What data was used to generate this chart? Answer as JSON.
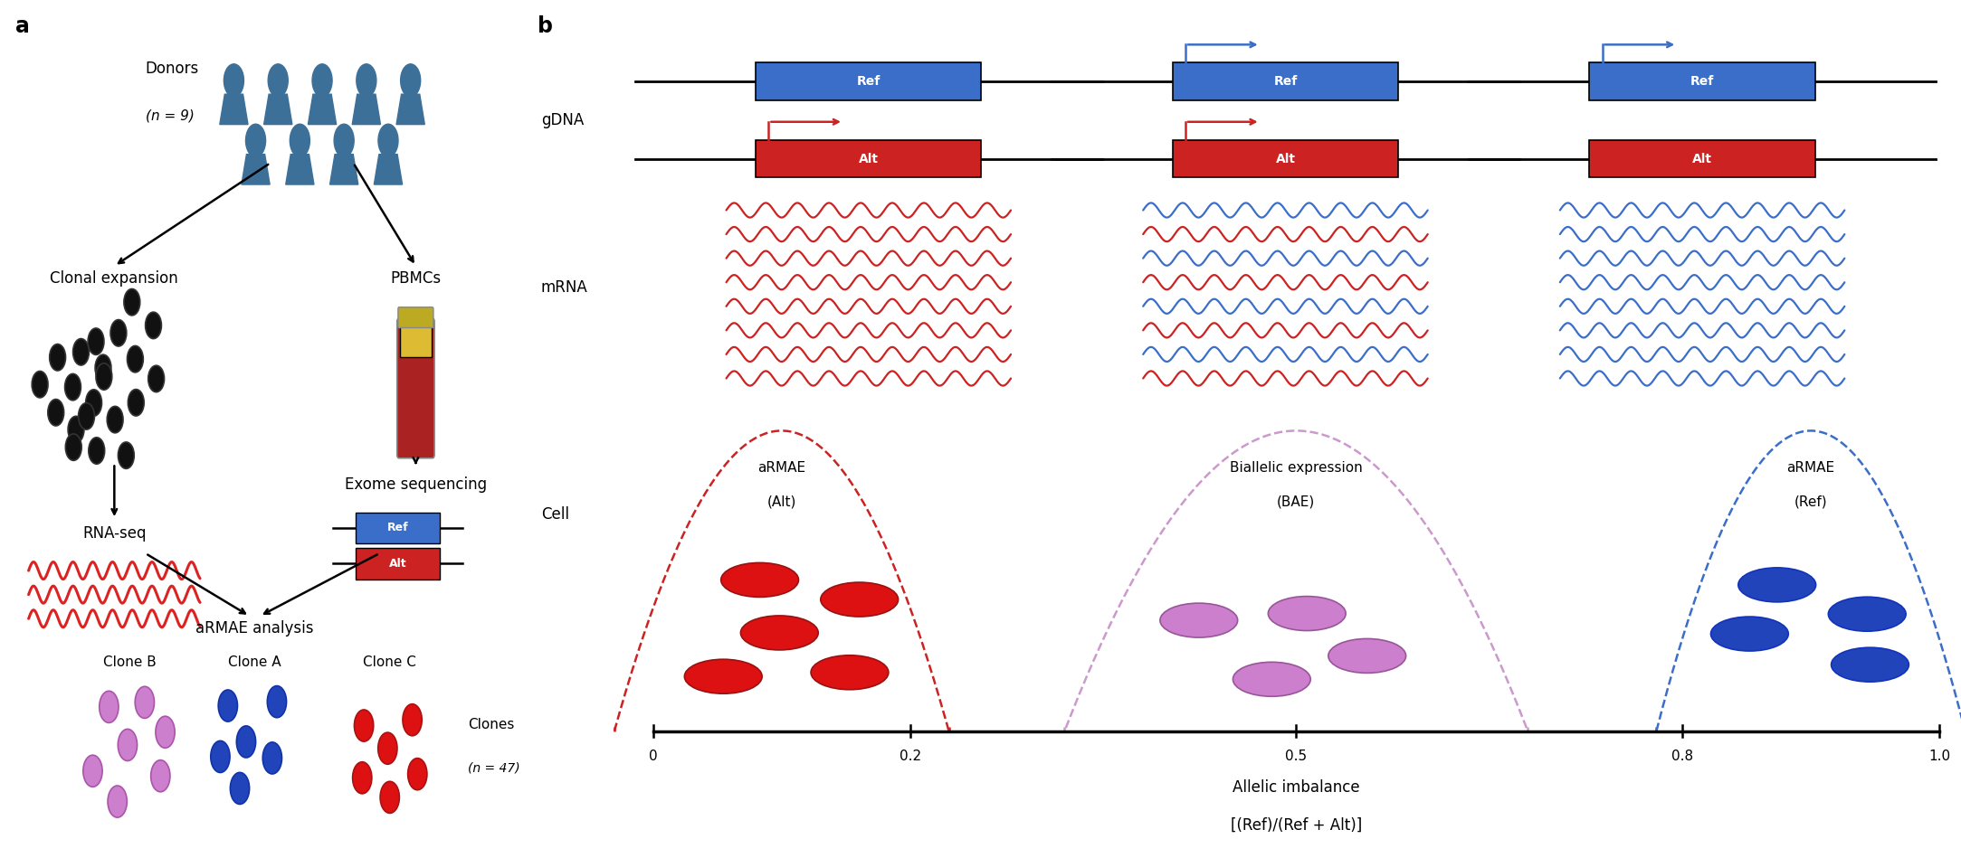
{
  "fig_width": 21.67,
  "fig_height": 9.49,
  "ref_color": "#3B6EC8",
  "alt_color": "#CC2222",
  "pink_color": "#CC88CC",
  "donor_icon_color": "#3D7099",
  "black_cell_color": "#111111",
  "blue_cell_color": "#2244BB",
  "red_cell_color": "#DD1111",
  "pink_cell_color": "#CC7FCC",
  "gdna_label": "gDNA",
  "mrna_label": "mRNA",
  "cell_label": "Cell",
  "xlabel1": "Allelic imbalance",
  "xlabel2": "[(Ref)/(Ref + Alt)]"
}
